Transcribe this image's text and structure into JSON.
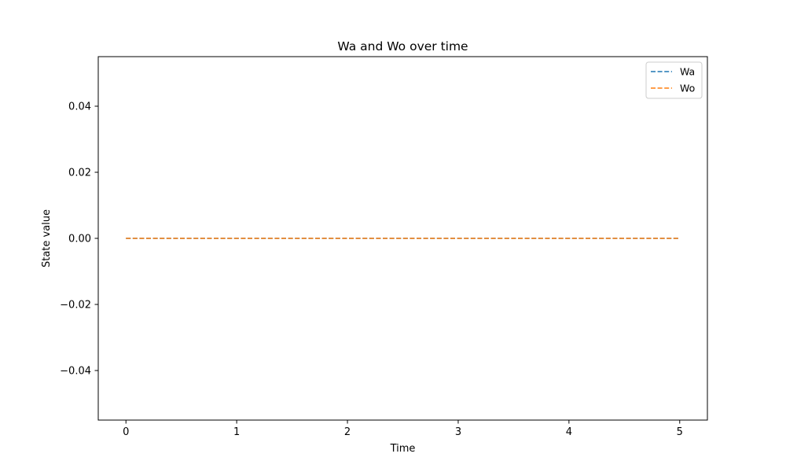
{
  "chart_data": {
    "type": "line",
    "title": "Wa and Wo over time",
    "xlabel": "Time",
    "ylabel": "State value",
    "xlim": [
      -0.25,
      5.25
    ],
    "ylim": [
      -0.055,
      0.055
    ],
    "xticks": [
      0,
      1,
      2,
      3,
      4,
      5
    ],
    "xtick_labels": [
      "0",
      "1",
      "2",
      "3",
      "4",
      "5"
    ],
    "yticks": [
      -0.04,
      -0.02,
      0.0,
      0.02,
      0.04
    ],
    "ytick_labels": [
      "−0.04",
      "−0.02",
      "0.00",
      "0.02",
      "0.04"
    ],
    "grid": false,
    "legend_position": "top-right",
    "series": [
      {
        "name": "Wa",
        "color": "#1f77b4",
        "linestyle": "dashed",
        "x": [
          0,
          5
        ],
        "y": [
          0.0,
          0.0
        ]
      },
      {
        "name": "Wo",
        "color": "#ff7f0e",
        "linestyle": "dashed",
        "x": [
          0,
          5
        ],
        "y": [
          0.0,
          0.0
        ]
      }
    ]
  }
}
